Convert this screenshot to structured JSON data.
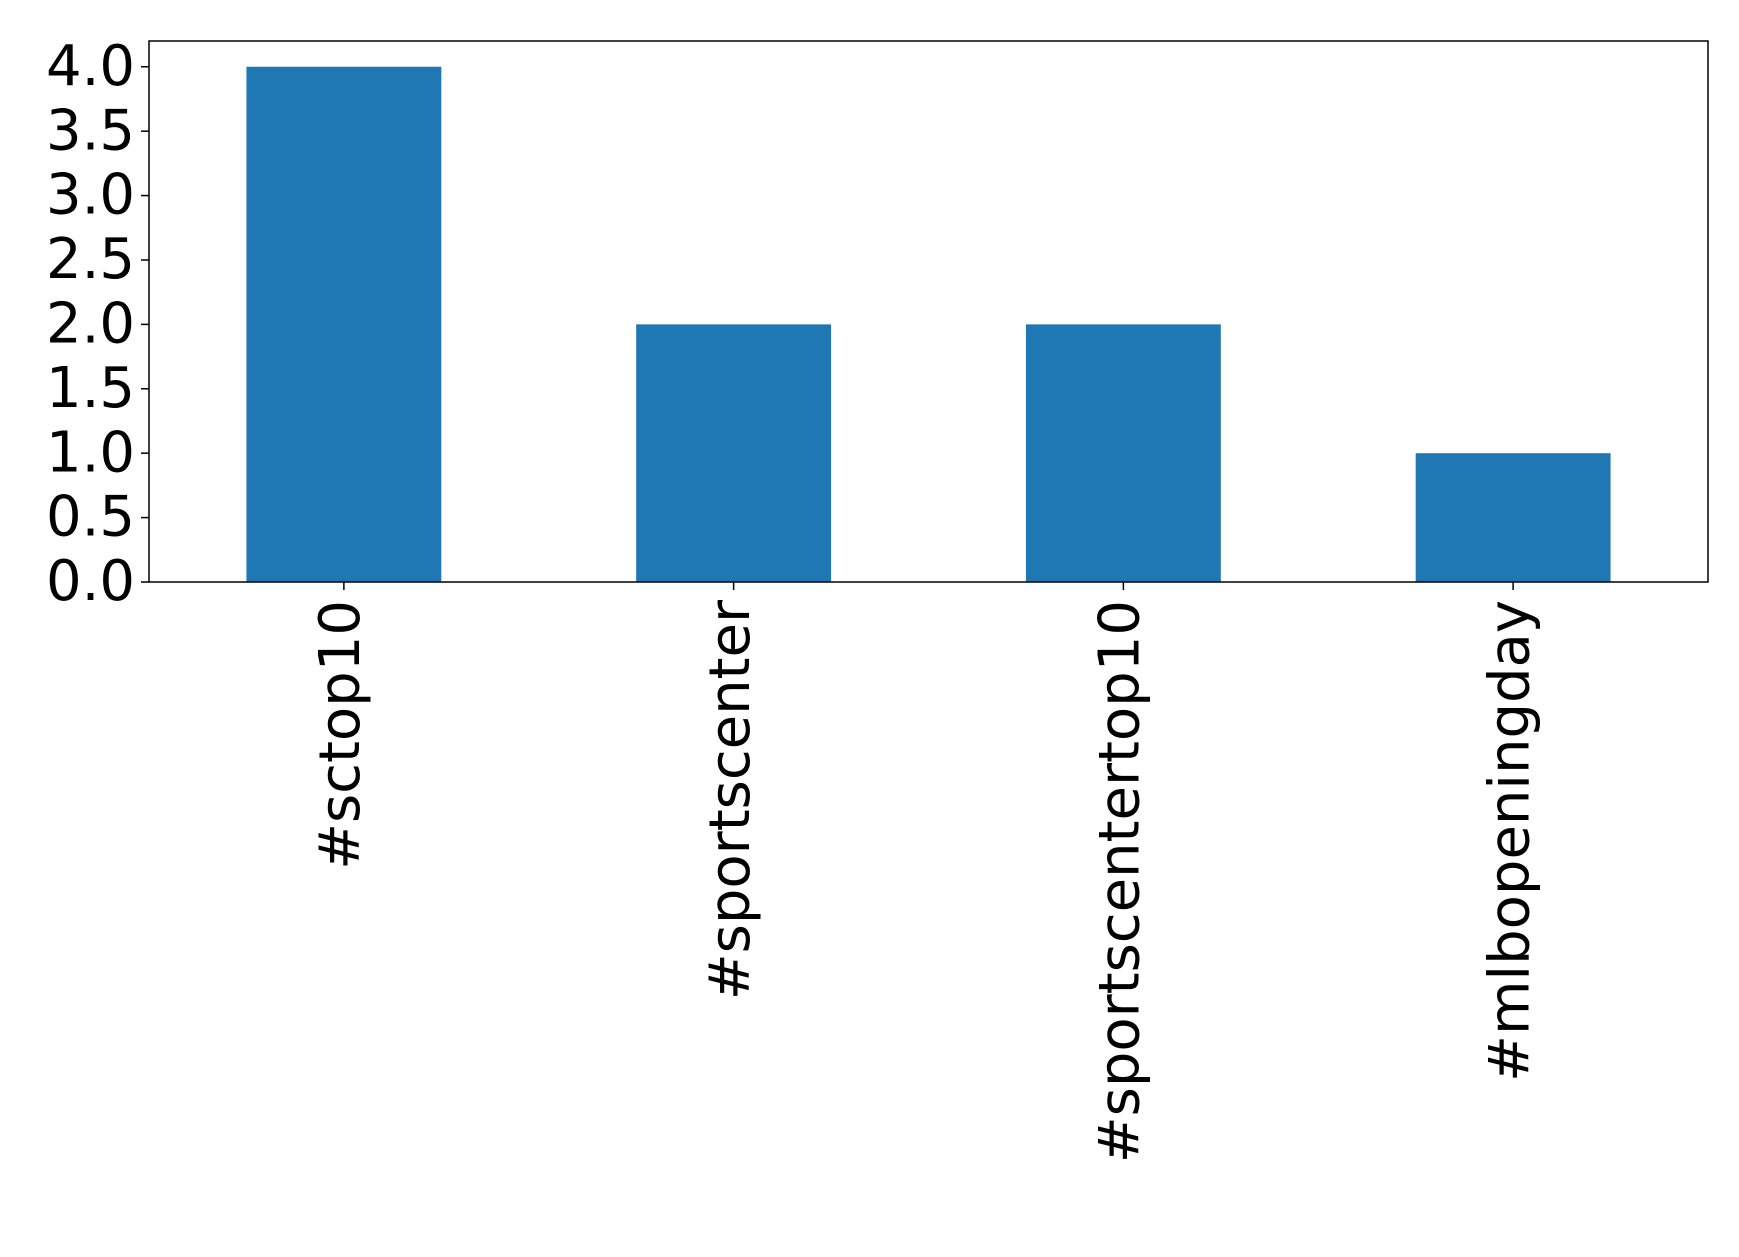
{
  "chart_data": {
    "type": "bar",
    "categories": [
      "#sctop10",
      "#sportscenter",
      "#sportscentertop10",
      "#mlbopeningday"
    ],
    "values": [
      4,
      2,
      2,
      1
    ],
    "color": "#1f77b4",
    "ylim": [
      0,
      4.2
    ],
    "yticks": [
      {
        "value": 0,
        "label": "0.0"
      },
      0.5,
      {
        "value": 1,
        "label": "1.0"
      },
      1.5,
      {
        "value": 2,
        "label": "2.0"
      },
      2.5,
      {
        "value": 3,
        "label": "3.0"
      },
      3.5,
      {
        "value": 4,
        "label": "4.0"
      }
    ],
    "grid": false
  }
}
